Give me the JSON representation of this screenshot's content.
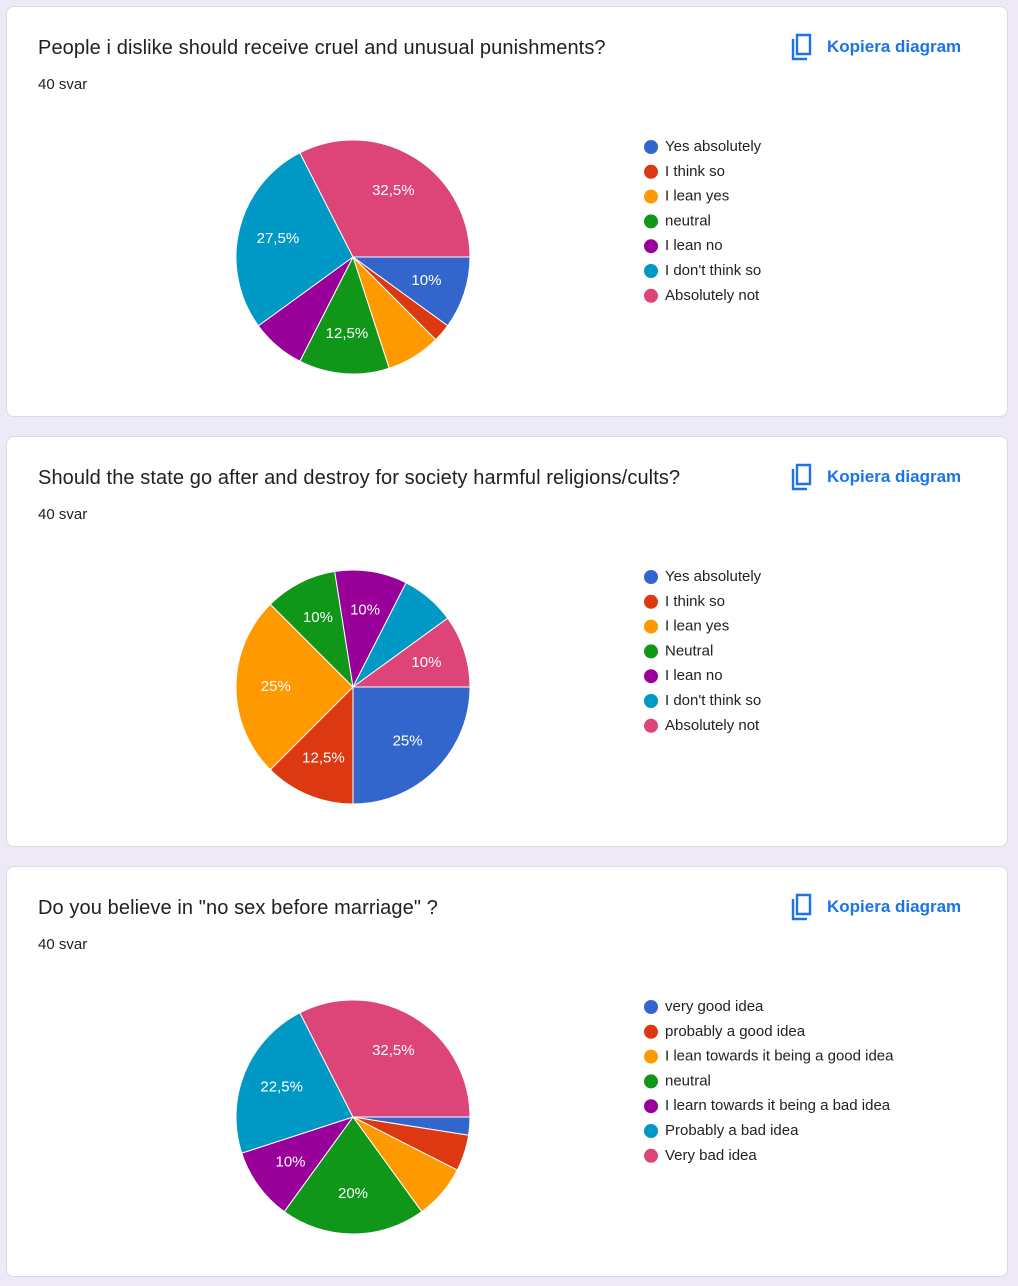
{
  "chart_data": [
    {
      "type": "pie",
      "title": "People i dislike should receive cruel and unusual punishments?",
      "subtitle": "40 svar",
      "action": "Kopiera diagram",
      "categories": [
        "Yes absolutely",
        "I think so",
        "I lean yes",
        "neutral",
        "I lean no",
        "I don't think so",
        "Absolutely not"
      ],
      "values": [
        10,
        2.5,
        7.5,
        12.5,
        7.5,
        27.5,
        32.5
      ],
      "value_labels": [
        "10%",
        null,
        null,
        "12,5%",
        null,
        "27,5%",
        "32,5%"
      ],
      "colors": [
        "#3366cc",
        "#dc3912",
        "#ff9900",
        "#109618",
        "#990099",
        "#0099c6",
        "#dd4477"
      ]
    },
    {
      "type": "pie",
      "title": "Should the state go after and destroy for society harmful religions/cults?",
      "subtitle": "40 svar",
      "action": "Kopiera diagram",
      "categories": [
        "Yes absolutely",
        "I think so",
        "I lean yes",
        "Neutral",
        "I lean no",
        "I don't think so",
        "Absolutely not"
      ],
      "values": [
        25,
        12.5,
        25,
        10,
        10,
        7.5,
        10
      ],
      "value_labels": [
        "25%",
        "12,5%",
        "25%",
        "10%",
        "10%",
        null,
        "10%"
      ],
      "colors": [
        "#3366cc",
        "#dc3912",
        "#ff9900",
        "#109618",
        "#990099",
        "#0099c6",
        "#dd4477"
      ]
    },
    {
      "type": "pie",
      "title": "Do you believe in \"no sex before marriage\" ?",
      "subtitle": "40 svar",
      "action": "Kopiera diagram",
      "categories": [
        "very good idea",
        "probably a good idea",
        "I lean towards it being a good idea",
        "neutral",
        "I learn towards it being a bad idea",
        "Probably a bad idea",
        "Very bad idea"
      ],
      "values": [
        2.5,
        5,
        7.5,
        20,
        10,
        22.5,
        32.5
      ],
      "value_labels": [
        null,
        null,
        null,
        "20%",
        "10%",
        "22,5%",
        "32,5%"
      ],
      "colors": [
        "#3366cc",
        "#dc3912",
        "#ff9900",
        "#109618",
        "#990099",
        "#0099c6",
        "#dd4477"
      ]
    }
  ]
}
